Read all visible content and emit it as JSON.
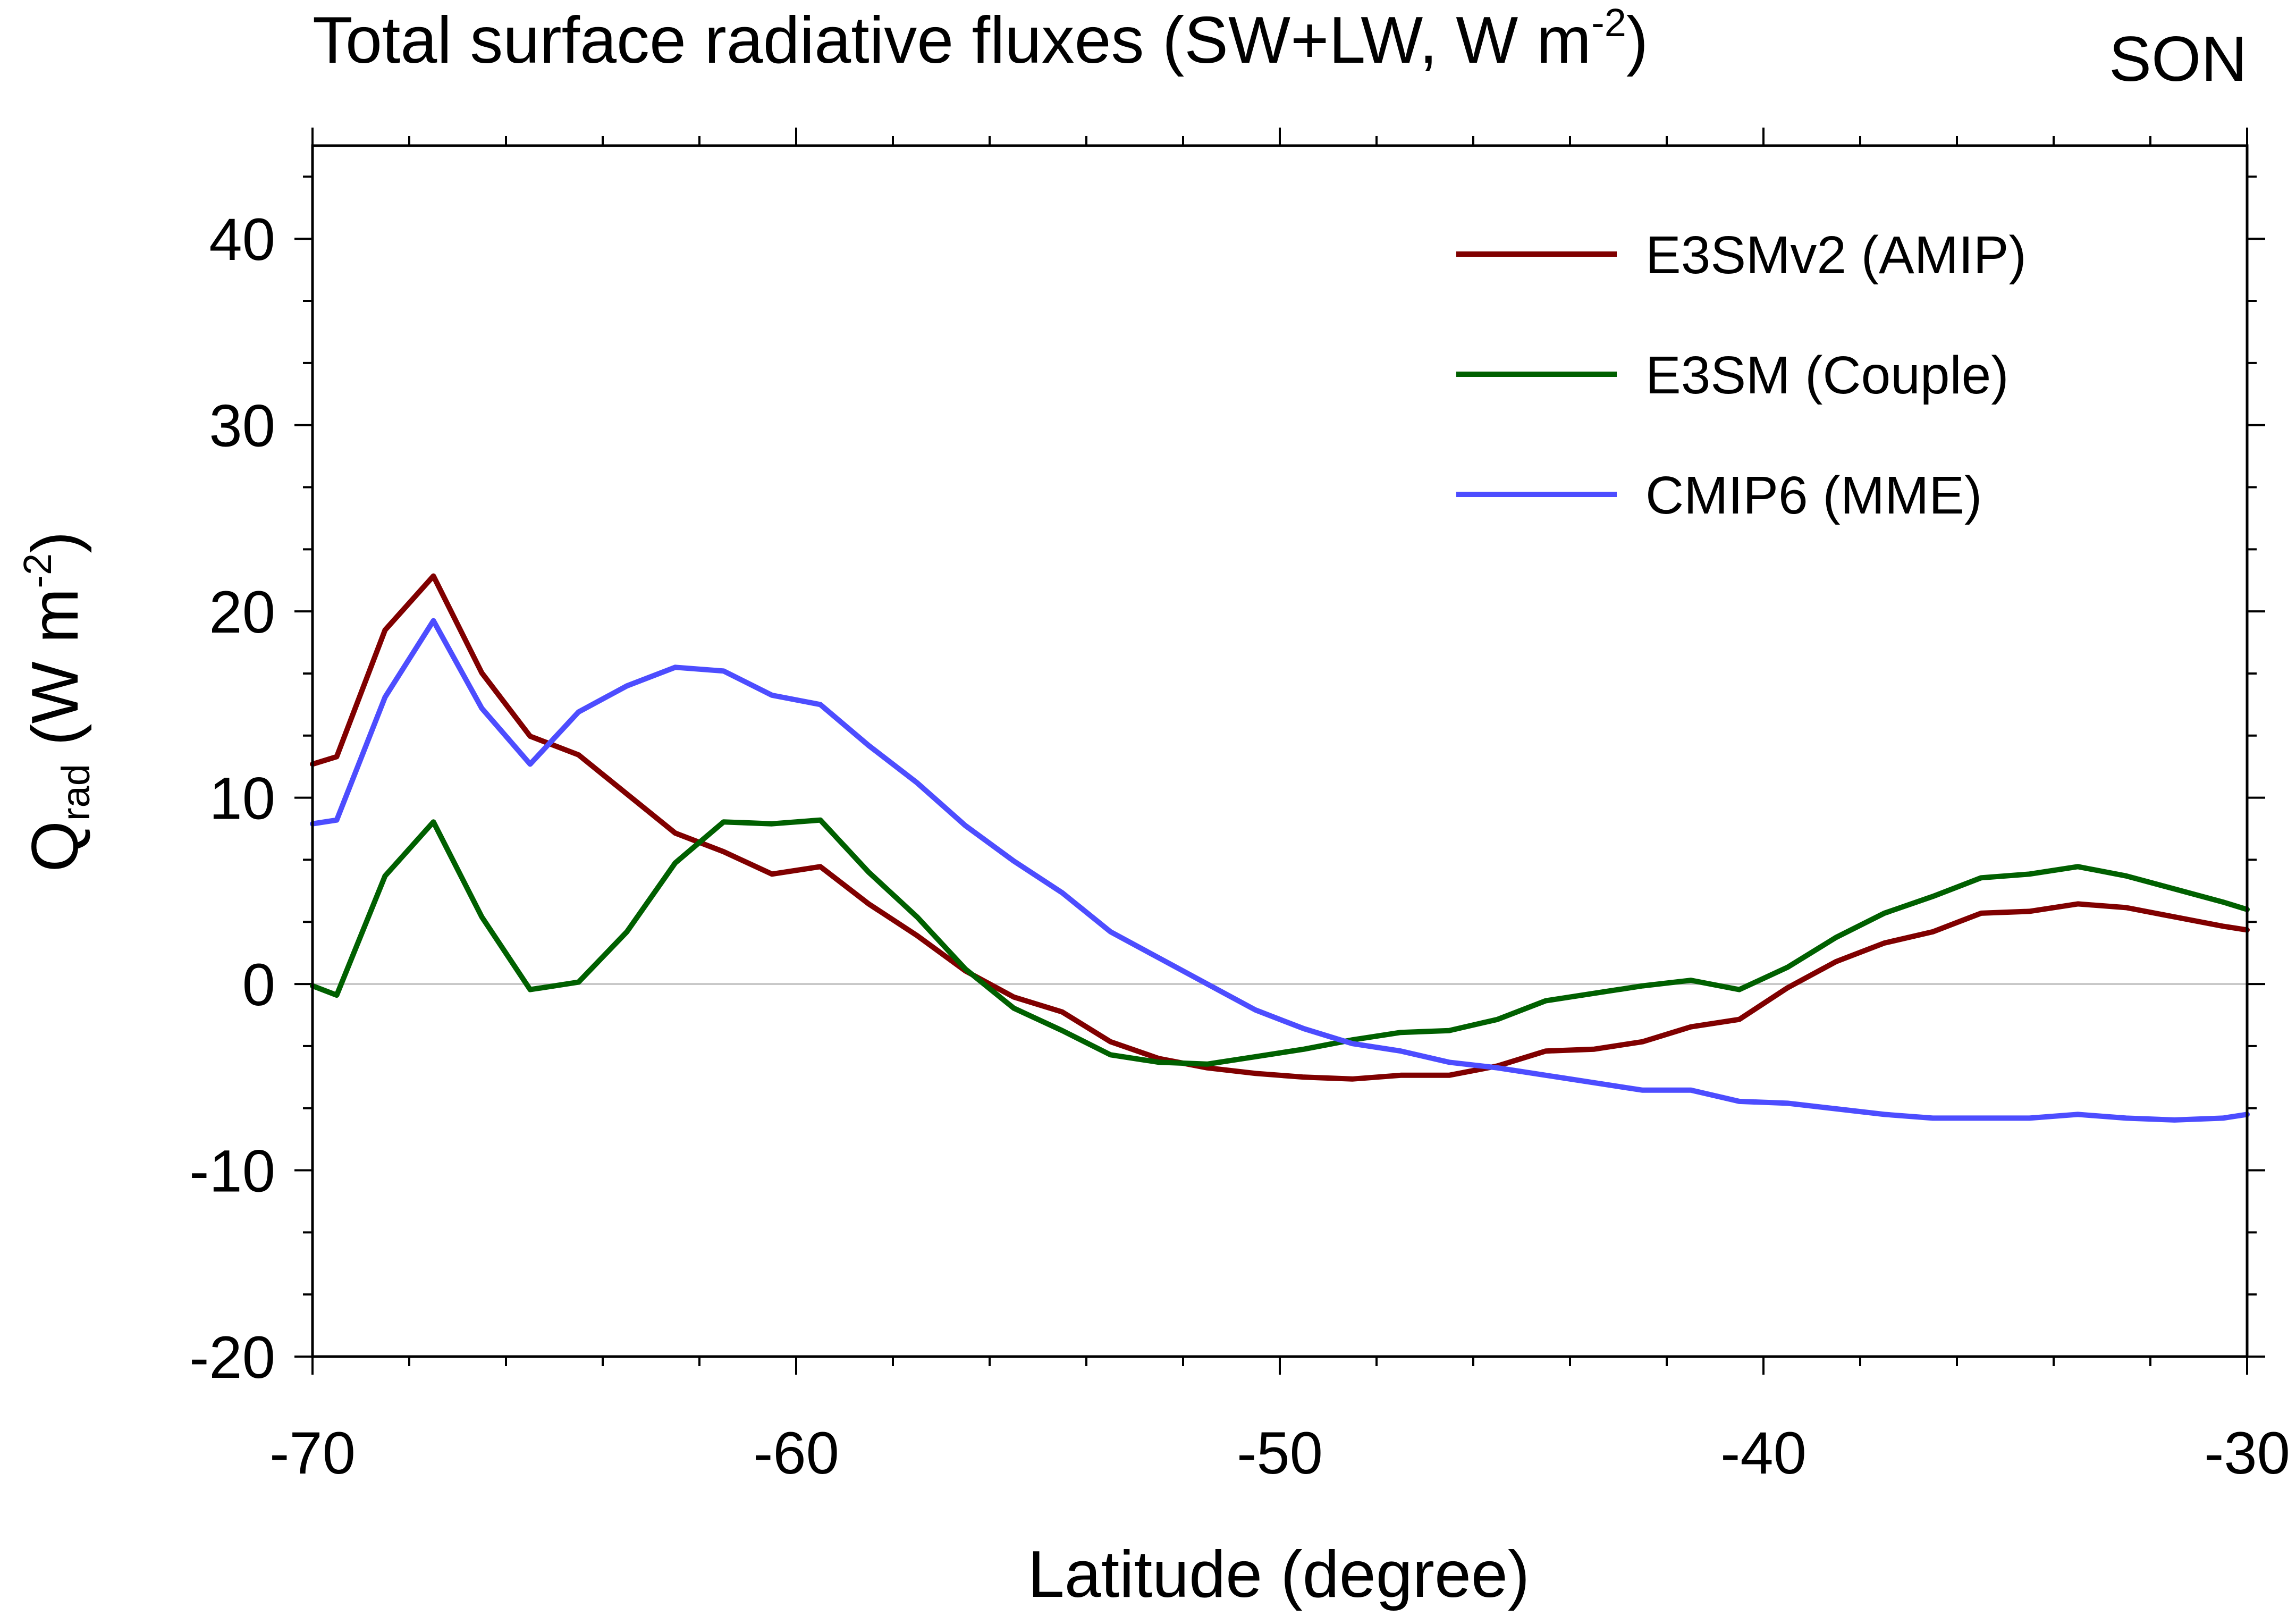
{
  "chart_data": {
    "type": "line",
    "title": "Total surface radiative fluxes (SW+LW, W m",
    "title_sup": "-2",
    "title_close": ")",
    "season": "SON",
    "xlabel": "Latitude (degree)",
    "ylabel_main": "Q",
    "ylabel_sub": "rad",
    "ylabel_units": " (W m",
    "ylabel_sup": "-2",
    "ylabel_close": ")",
    "xlim": [
      -70,
      -30
    ],
    "ylim": [
      -20,
      45
    ],
    "xticks": [
      -70,
      -60,
      -50,
      -40,
      -30
    ],
    "xtick_labels": [
      "-70",
      "-60",
      "-50",
      "-40",
      "-30"
    ],
    "yticks": [
      -20,
      -10,
      0,
      10,
      20,
      30,
      40
    ],
    "ytick_labels": [
      "-20",
      "-10",
      "0",
      "10",
      "20",
      "30",
      "40"
    ],
    "x_minor_step": 2,
    "y_minor_step": 3.3333,
    "zero_line": true,
    "legend_position": "top-right",
    "x": [
      -70,
      -69.5,
      -68.5,
      -67.5,
      -66.5,
      -65.5,
      -64.5,
      -63.5,
      -62.5,
      -61.5,
      -60.5,
      -59.5,
      -58.5,
      -57.5,
      -56.5,
      -55.5,
      -54.5,
      -53.5,
      -52.5,
      -51.5,
      -50.5,
      -49.5,
      -48.5,
      -47.5,
      -46.5,
      -45.5,
      -44.5,
      -43.5,
      -42.5,
      -41.5,
      -40.5,
      -39.5,
      -38.5,
      -37.5,
      -36.5,
      -35.5,
      -34.5,
      -33.5,
      -32.5,
      -31.5,
      -30.5,
      -30
    ],
    "series": [
      {
        "name": "E3SMv2 (AMIP)",
        "color": "#800000",
        "values": [
          11.8,
          12.2,
          19.0,
          21.9,
          16.7,
          13.3,
          12.3,
          10.2,
          8.1,
          7.1,
          5.9,
          6.3,
          4.3,
          2.6,
          0.7,
          -0.7,
          -1.5,
          -3.1,
          -4.0,
          -4.5,
          -4.8,
          -5.0,
          -5.1,
          -4.9,
          -4.9,
          -4.4,
          -3.6,
          -3.5,
          -3.1,
          -2.3,
          -1.9,
          -0.2,
          1.2,
          2.2,
          2.8,
          3.8,
          3.9,
          4.3,
          4.1,
          3.6,
          3.1,
          2.9
        ]
      },
      {
        "name": "E3SM (Couple)",
        "color": "#006000",
        "values": [
          -0.1,
          -0.6,
          5.8,
          8.7,
          3.6,
          -0.3,
          0.1,
          2.8,
          6.5,
          8.7,
          8.6,
          8.8,
          6.0,
          3.6,
          0.8,
          -1.3,
          -2.5,
          -3.8,
          -4.2,
          -4.3,
          -3.9,
          -3.5,
          -3.0,
          -2.6,
          -2.5,
          -1.9,
          -0.9,
          -0.5,
          -0.1,
          0.2,
          -0.3,
          0.9,
          2.5,
          3.8,
          4.7,
          5.7,
          5.9,
          6.3,
          5.8,
          5.1,
          4.4,
          4.0
        ]
      },
      {
        "name": "CMIP6 (MME)",
        "color": "#4d4dff",
        "values": [
          8.6,
          8.8,
          15.4,
          19.5,
          14.8,
          11.8,
          14.6,
          16.0,
          17.0,
          16.8,
          15.5,
          15.0,
          12.8,
          10.8,
          8.5,
          6.6,
          4.9,
          2.8,
          1.4,
          0.0,
          -1.4,
          -2.4,
          -3.2,
          -3.6,
          -4.2,
          -4.5,
          -4.9,
          -5.3,
          -5.7,
          -5.7,
          -6.3,
          -6.4,
          -6.7,
          -7.0,
          -7.2,
          -7.2,
          -7.2,
          -7.0,
          -7.2,
          -7.3,
          -7.2,
          -7.0
        ]
      }
    ]
  }
}
